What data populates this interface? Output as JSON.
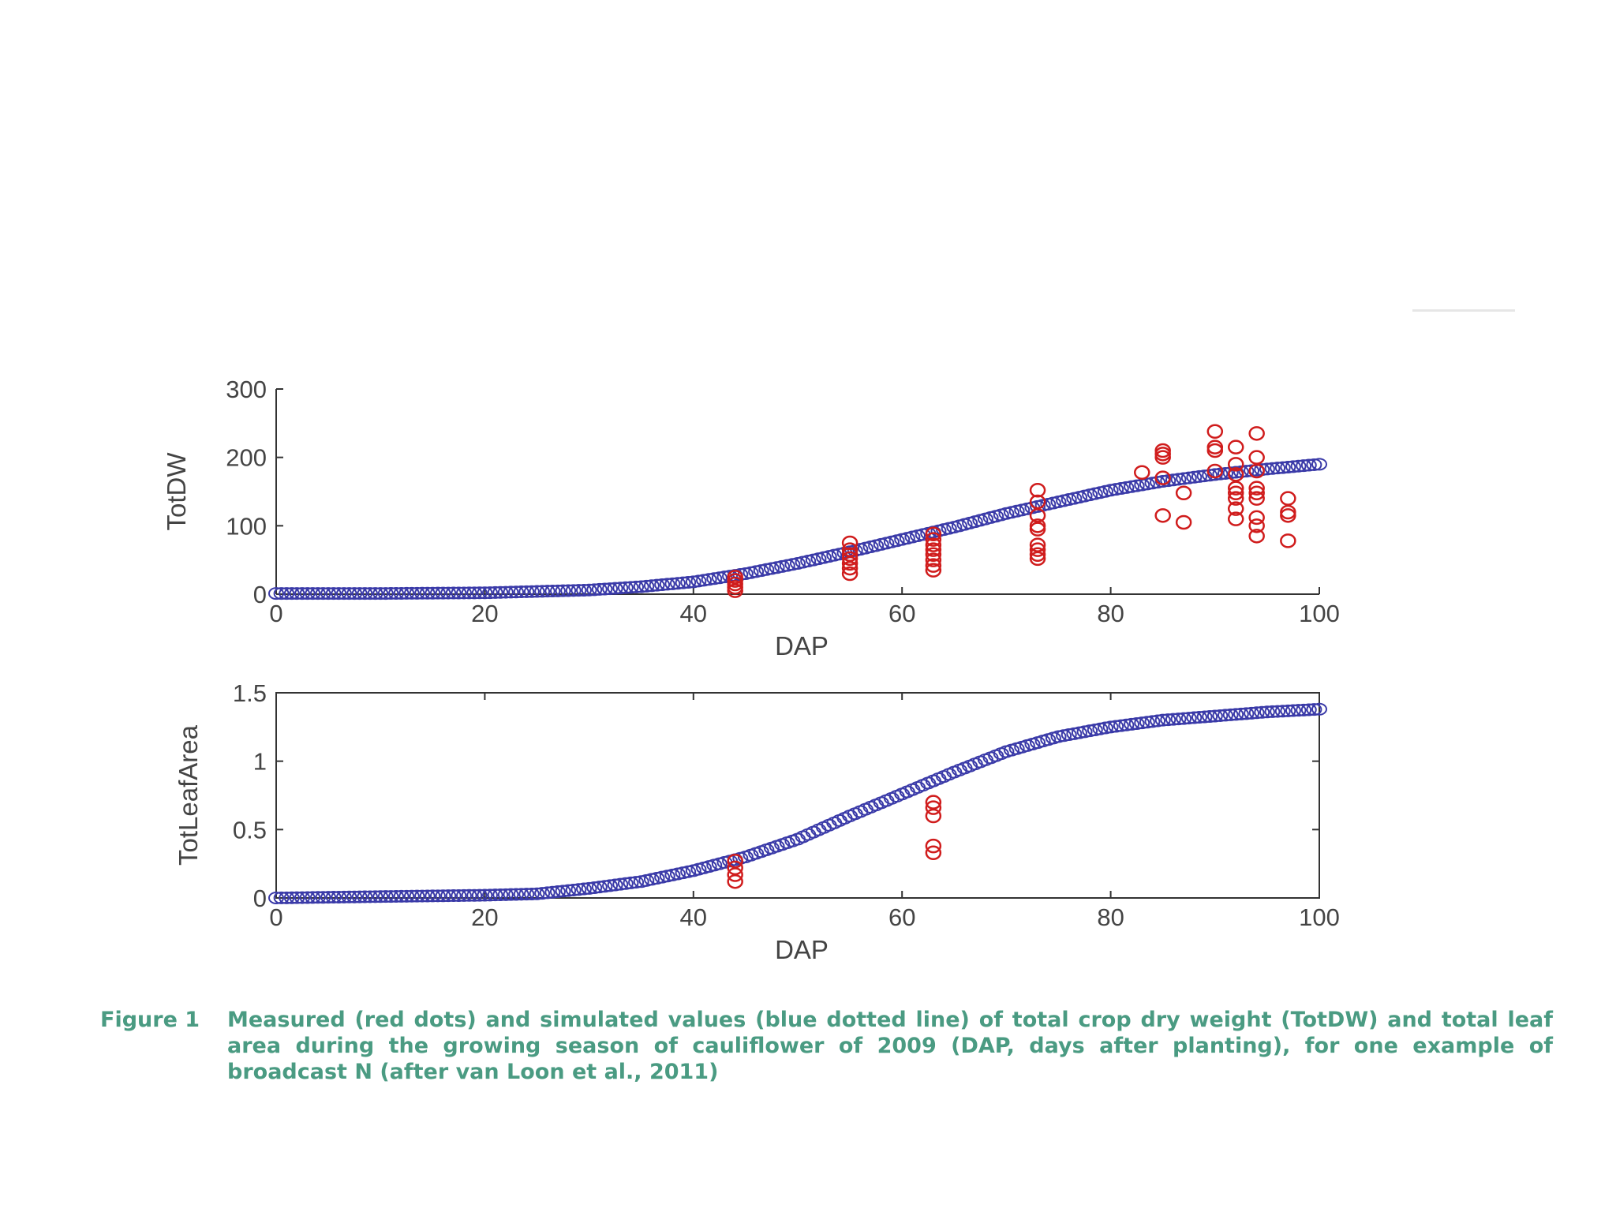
{
  "caption": {
    "label": "Figure 1",
    "text": "Measured (red dots) and simulated values (blue dotted line) of total crop dry weight (TotDW) and total leaf area during the growing season of cauliflower of 2009 (DAP, days after planting), for one example of broadcast N (after van Loon et al., 2011)"
  },
  "colors": {
    "measured": "#d01c1c",
    "simulated": "#3a3aa8",
    "axis": "#333333",
    "caption": "#4a9b82"
  },
  "chart_data": [
    {
      "type": "scatter",
      "xlabel": "DAP",
      "ylabel": "TotDW",
      "xlim": [
        0,
        100
      ],
      "ylim": [
        0,
        300
      ],
      "xticks": [
        "0",
        "20",
        "40",
        "60",
        "80",
        "100"
      ],
      "yticks": [
        "0",
        "100",
        "200",
        "300"
      ],
      "grid": false,
      "series": [
        {
          "style": "measured",
          "points": [
            [
              44,
              5
            ],
            [
              44,
              10
            ],
            [
              44,
              15
            ],
            [
              44,
              20
            ],
            [
              44,
              25
            ],
            [
              55,
              30
            ],
            [
              55,
              38
            ],
            [
              55,
              45
            ],
            [
              55,
              52
            ],
            [
              55,
              58
            ],
            [
              55,
              65
            ],
            [
              55,
              75
            ],
            [
              63,
              35
            ],
            [
              63,
              42
            ],
            [
              63,
              50
            ],
            [
              63,
              58
            ],
            [
              63,
              65
            ],
            [
              63,
              72
            ],
            [
              63,
              80
            ],
            [
              63,
              88
            ],
            [
              73,
              52
            ],
            [
              73,
              58
            ],
            [
              73,
              65
            ],
            [
              73,
              72
            ],
            [
              73,
              95
            ],
            [
              73,
              100
            ],
            [
              73,
              115
            ],
            [
              73,
              135
            ],
            [
              73,
              152
            ],
            [
              83,
              178
            ],
            [
              85,
              115
            ],
            [
              85,
              170
            ],
            [
              85,
              200
            ],
            [
              85,
              205
            ],
            [
              85,
              210
            ],
            [
              87,
              105
            ],
            [
              87,
              148
            ],
            [
              90,
              180
            ],
            [
              90,
              210
            ],
            [
              90,
              215
            ],
            [
              90,
              238
            ],
            [
              92,
              110
            ],
            [
              92,
              125
            ],
            [
              92,
              140
            ],
            [
              92,
              148
            ],
            [
              92,
              155
            ],
            [
              92,
              175
            ],
            [
              92,
              190
            ],
            [
              92,
              215
            ],
            [
              94,
              85
            ],
            [
              94,
              100
            ],
            [
              94,
              112
            ],
            [
              94,
              140
            ],
            [
              94,
              148
            ],
            [
              94,
              155
            ],
            [
              94,
              180
            ],
            [
              94,
              200
            ],
            [
              94,
              235
            ],
            [
              97,
              78
            ],
            [
              97,
              115
            ],
            [
              97,
              120
            ],
            [
              97,
              140
            ]
          ]
        },
        {
          "style": "simulated",
          "points": [
            [
              0,
              1
            ],
            [
              10,
              1
            ],
            [
              20,
              2
            ],
            [
              30,
              6
            ],
            [
              35,
              11
            ],
            [
              40,
              18
            ],
            [
              45,
              30
            ],
            [
              50,
              45
            ],
            [
              55,
              62
            ],
            [
              60,
              80
            ],
            [
              65,
              98
            ],
            [
              70,
              118
            ],
            [
              75,
              135
            ],
            [
              80,
              152
            ],
            [
              85,
              165
            ],
            [
              90,
              175
            ],
            [
              95,
              183
            ],
            [
              100,
              190
            ]
          ]
        }
      ]
    },
    {
      "type": "scatter",
      "xlabel": "DAP",
      "ylabel": "TotLeafArea",
      "xlim": [
        0,
        100
      ],
      "ylim": [
        0,
        1.5
      ],
      "xticks": [
        "0",
        "20",
        "40",
        "60",
        "80",
        "100"
      ],
      "yticks": [
        "0",
        "0.5",
        "1",
        "1.5"
      ],
      "grid": false,
      "series": [
        {
          "style": "measured",
          "points": [
            [
              44,
              0.12
            ],
            [
              44,
              0.17
            ],
            [
              44,
              0.22
            ],
            [
              44,
              0.27
            ],
            [
              63,
              0.33
            ],
            [
              63,
              0.38
            ],
            [
              63,
              0.6
            ],
            [
              63,
              0.66
            ],
            [
              63,
              0.7
            ]
          ]
        },
        {
          "style": "simulated",
          "points": [
            [
              0,
              0.0
            ],
            [
              10,
              0.01
            ],
            [
              20,
              0.02
            ],
            [
              25,
              0.03
            ],
            [
              30,
              0.07
            ],
            [
              35,
              0.12
            ],
            [
              40,
              0.2
            ],
            [
              45,
              0.3
            ],
            [
              50,
              0.43
            ],
            [
              55,
              0.6
            ],
            [
              60,
              0.76
            ],
            [
              65,
              0.92
            ],
            [
              70,
              1.07
            ],
            [
              75,
              1.18
            ],
            [
              80,
              1.25
            ],
            [
              85,
              1.3
            ],
            [
              90,
              1.33
            ],
            [
              95,
              1.36
            ],
            [
              100,
              1.38
            ]
          ]
        }
      ]
    }
  ]
}
